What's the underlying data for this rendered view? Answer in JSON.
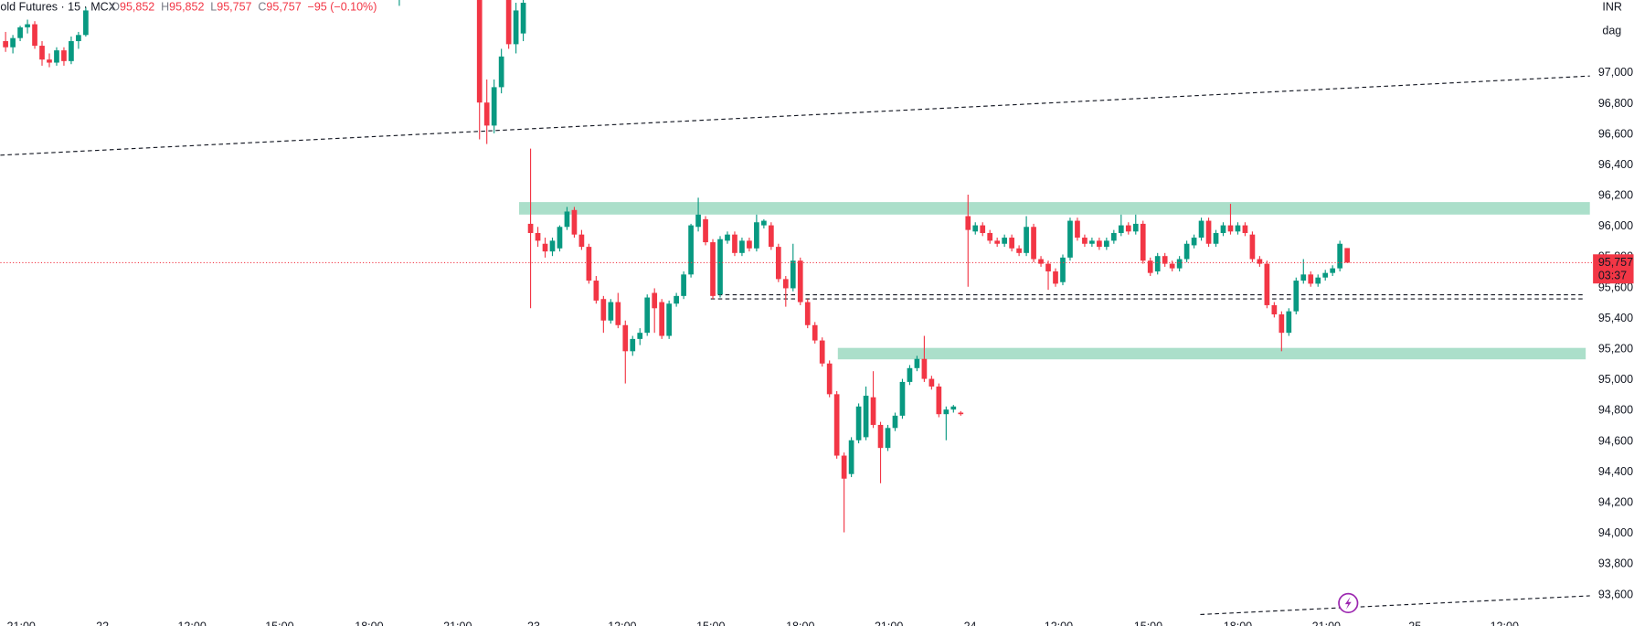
{
  "chart_data": {
    "type": "candlestick",
    "title": "old Futures · 15 · MCX",
    "ohlc_legend": [
      {
        "label": "O",
        "value": "95,852"
      },
      {
        "label": "H",
        "value": "95,852"
      },
      {
        "label": "L",
        "value": "95,757"
      },
      {
        "label": "C",
        "value": "95,757"
      }
    ],
    "change": "−95 (−0.10%)",
    "currency": "INR",
    "adjustment": "dag",
    "price_label": "95,757",
    "countdown": "03:37",
    "up_color": "#089981",
    "down_color": "#f23645",
    "ylim": [
      93390,
      97468
    ],
    "yticks": [
      {
        "value": 93600,
        "label": "93,600"
      },
      {
        "value": 93800,
        "label": "93,800"
      },
      {
        "value": 94000,
        "label": "94,000"
      },
      {
        "value": 94200,
        "label": "94,200"
      },
      {
        "value": 94400,
        "label": "94,400"
      },
      {
        "value": 94600,
        "label": "94,600"
      },
      {
        "value": 94800,
        "label": "94,800"
      },
      {
        "value": 95000,
        "label": "95,000"
      },
      {
        "value": 95200,
        "label": "95,200"
      },
      {
        "value": 95400,
        "label": "95,400"
      },
      {
        "value": 95600,
        "label": "95,600"
      },
      {
        "value": 95800,
        "label": "95,800"
      },
      {
        "value": 96000,
        "label": "96,000"
      },
      {
        "value": 96200,
        "label": "96,200"
      },
      {
        "value": 96400,
        "label": "96,400"
      },
      {
        "value": 96600,
        "label": "96,600"
      },
      {
        "value": 96800,
        "label": "96,800"
      },
      {
        "value": 97000,
        "label": "97,000"
      }
    ],
    "xtick_labels": [
      "21:00",
      "22",
      "12:00",
      "15:00",
      "18:00",
      "21:00",
      "23",
      "12:00",
      "15:00",
      "18:00",
      "21:00",
      "24",
      "12:00",
      "15:00",
      "18:00",
      "21:00",
      "25",
      "12:00"
    ],
    "ohlc": [
      [
        97200,
        97260,
        97130,
        97160
      ],
      [
        97160,
        97240,
        97120,
        97220
      ],
      [
        97220,
        97300,
        97200,
        97290
      ],
      [
        97290,
        97340,
        97250,
        97310
      ],
      [
        97310,
        97330,
        97150,
        97170
      ],
      [
        97170,
        97200,
        97040,
        97080
      ],
      [
        97080,
        97120,
        97030,
        97060
      ],
      [
        97060,
        97160,
        97040,
        97140
      ],
      [
        97140,
        97160,
        97040,
        97070
      ],
      [
        97070,
        97230,
        97050,
        97200
      ],
      [
        97200,
        97260,
        97150,
        97240
      ],
      [
        97240,
        97420,
        97230,
        97400
      ],
      null,
      null,
      null,
      null,
      null,
      null,
      null,
      null,
      null,
      null,
      null,
      null,
      null,
      null,
      null,
      null,
      null,
      null,
      null,
      null,
      null,
      null,
      null,
      null,
      null,
      null,
      null,
      null,
      null,
      null,
      null,
      null,
      null,
      null,
      null,
      null,
      null,
      null,
      null,
      null,
      null,
      null,
      [
        97480,
        97520,
        97430,
        97500
      ],
      null,
      null,
      null,
      null,
      null,
      null,
      null,
      null,
      null,
      null,
      [
        97700,
        97800,
        96560,
        96800
      ],
      [
        96800,
        96950,
        96530,
        96650
      ],
      [
        96650,
        96950,
        96600,
        96900
      ],
      [
        96900,
        97150,
        96860,
        97100
      ],
      [
        97750,
        97800,
        97150,
        97180
      ],
      [
        97180,
        97450,
        97120,
        97400
      ],
      [
        97250,
        97500,
        97200,
        97450
      ],
      [
        96010,
        96500,
        95460,
        95950
      ],
      [
        95950,
        95990,
        95860,
        95900
      ],
      [
        95880,
        95920,
        95790,
        95830
      ],
      [
        95830,
        95920,
        95800,
        95900
      ],
      [
        95850,
        96000,
        95830,
        95990
      ],
      [
        95990,
        96120,
        95970,
        96090
      ],
      [
        96100,
        96120,
        95920,
        95940
      ],
      [
        95940,
        95970,
        95840,
        95860
      ],
      [
        95860,
        95880,
        95620,
        95640
      ],
      [
        95640,
        95670,
        95490,
        95510
      ],
      [
        95520,
        95540,
        95300,
        95380
      ],
      [
        95380,
        95520,
        95360,
        95500
      ],
      [
        95500,
        95560,
        95330,
        95350
      ],
      [
        95350,
        95380,
        94970,
        95180
      ],
      [
        95180,
        95280,
        95150,
        95260
      ],
      [
        95260,
        95330,
        95220,
        95300
      ],
      [
        95300,
        95550,
        95280,
        95530
      ],
      [
        95560,
        95590,
        95300,
        95460
      ],
      [
        95500,
        95520,
        95260,
        95280
      ],
      [
        95280,
        95510,
        95260,
        95490
      ],
      [
        95490,
        95560,
        95470,
        95540
      ],
      [
        95540,
        95700,
        95520,
        95680
      ],
      [
        95680,
        96010,
        95660,
        96000
      ],
      [
        95990,
        96180,
        95960,
        96070
      ],
      [
        96040,
        96060,
        95870,
        95890
      ],
      [
        95890,
        95910,
        95520,
        95540
      ],
      [
        95550,
        95930,
        95530,
        95910
      ],
      [
        95900,
        95960,
        95880,
        95940
      ],
      [
        95940,
        95960,
        95800,
        95820
      ],
      [
        95820,
        95920,
        95800,
        95900
      ],
      [
        95900,
        95920,
        95830,
        95850
      ],
      [
        95850,
        96070,
        95830,
        96020
      ],
      [
        96000,
        96040,
        95980,
        96030
      ],
      [
        96000,
        96020,
        95840,
        95860
      ],
      [
        95860,
        95880,
        95630,
        95650
      ],
      [
        95650,
        95670,
        95470,
        95590
      ],
      [
        95590,
        95880,
        95570,
        95770
      ],
      [
        95770,
        95790,
        95480,
        95500
      ],
      [
        95500,
        95520,
        95330,
        95350
      ],
      [
        95350,
        95370,
        95230,
        95250
      ],
      [
        95250,
        95270,
        95080,
        95100
      ],
      [
        95100,
        95120,
        94880,
        94900
      ],
      [
        94900,
        94920,
        94480,
        94500
      ],
      [
        94500,
        94520,
        94000,
        94350
      ],
      [
        94380,
        94620,
        94360,
        94600
      ],
      [
        94600,
        94840,
        94580,
        94820
      ],
      [
        94620,
        94950,
        94600,
        94890
      ],
      [
        94880,
        95050,
        94680,
        94700
      ],
      [
        94700,
        94720,
        94320,
        94550
      ],
      [
        94550,
        94700,
        94530,
        94680
      ],
      [
        94680,
        94780,
        94660,
        94760
      ],
      [
        94760,
        95000,
        94740,
        94980
      ],
      [
        94980,
        95090,
        94960,
        95070
      ],
      [
        95070,
        95150,
        95050,
        95130
      ],
      [
        95130,
        95280,
        94980,
        95000
      ],
      [
        95000,
        95020,
        94930,
        94950
      ],
      [
        94950,
        94970,
        94750,
        94770
      ],
      [
        94770,
        94820,
        94600,
        94800
      ],
      [
        94800,
        94830,
        94780,
        94820
      ],
      [
        94780,
        94790,
        94760,
        94770
      ],
      [
        96060,
        96200,
        95600,
        95970
      ],
      [
        95960,
        96020,
        95940,
        96000
      ],
      [
        96000,
        96020,
        95930,
        95950
      ],
      [
        95950,
        95970,
        95880,
        95900
      ],
      [
        95900,
        95920,
        95860,
        95880
      ],
      [
        95880,
        95940,
        95860,
        95920
      ],
      [
        95920,
        95940,
        95830,
        95850
      ],
      [
        95850,
        95870,
        95800,
        95820
      ],
      [
        95820,
        96060,
        95800,
        95990
      ],
      [
        95990,
        96010,
        95760,
        95780
      ],
      [
        95780,
        95800,
        95730,
        95750
      ],
      [
        95750,
        95770,
        95580,
        95700
      ],
      [
        95700,
        95720,
        95600,
        95620
      ],
      [
        95630,
        95810,
        95610,
        95790
      ],
      [
        95790,
        96050,
        95770,
        96030
      ],
      [
        96030,
        96050,
        95900,
        95920
      ],
      [
        95920,
        95940,
        95860,
        95880
      ],
      [
        95880,
        95920,
        95860,
        95900
      ],
      [
        95900,
        95920,
        95840,
        95860
      ],
      [
        95860,
        95920,
        95840,
        95900
      ],
      [
        95900,
        95970,
        95880,
        95950
      ],
      [
        95950,
        96070,
        95930,
        96000
      ],
      [
        96000,
        96020,
        95940,
        95960
      ],
      [
        95960,
        96070,
        95940,
        96010
      ],
      [
        96010,
        96030,
        95750,
        95770
      ],
      [
        95770,
        95790,
        95670,
        95690
      ],
      [
        95700,
        95820,
        95680,
        95800
      ],
      [
        95800,
        95820,
        95730,
        95750
      ],
      [
        95750,
        95770,
        95700,
        95720
      ],
      [
        95720,
        95800,
        95700,
        95780
      ],
      [
        95780,
        95900,
        95760,
        95880
      ],
      [
        95870,
        95940,
        95850,
        95920
      ],
      [
        95920,
        96050,
        95900,
        96030
      ],
      [
        96030,
        96050,
        95860,
        95880
      ],
      [
        95880,
        95970,
        95860,
        95950
      ],
      [
        95950,
        96020,
        95930,
        96000
      ],
      [
        96000,
        96140,
        95940,
        95960
      ],
      [
        95960,
        96020,
        95940,
        96000
      ],
      [
        96000,
        96020,
        95930,
        95950
      ],
      [
        95940,
        95960,
        95760,
        95780
      ],
      [
        95780,
        95800,
        95730,
        95750
      ],
      [
        95750,
        95770,
        95460,
        95480
      ],
      [
        95480,
        95500,
        95400,
        95420
      ],
      [
        95420,
        95440,
        95180,
        95300
      ],
      [
        95300,
        95460,
        95280,
        95440
      ],
      [
        95440,
        95660,
        95420,
        95640
      ],
      [
        95640,
        95780,
        95620,
        95680
      ],
      [
        95680,
        95700,
        95600,
        95620
      ],
      [
        95620,
        95680,
        95600,
        95660
      ],
      [
        95660,
        95710,
        95640,
        95690
      ],
      [
        95690,
        95740,
        95670,
        95720
      ],
      [
        95720,
        95900,
        95700,
        95880
      ],
      [
        95852,
        95852,
        95757,
        95757
      ]
    ]
  }
}
